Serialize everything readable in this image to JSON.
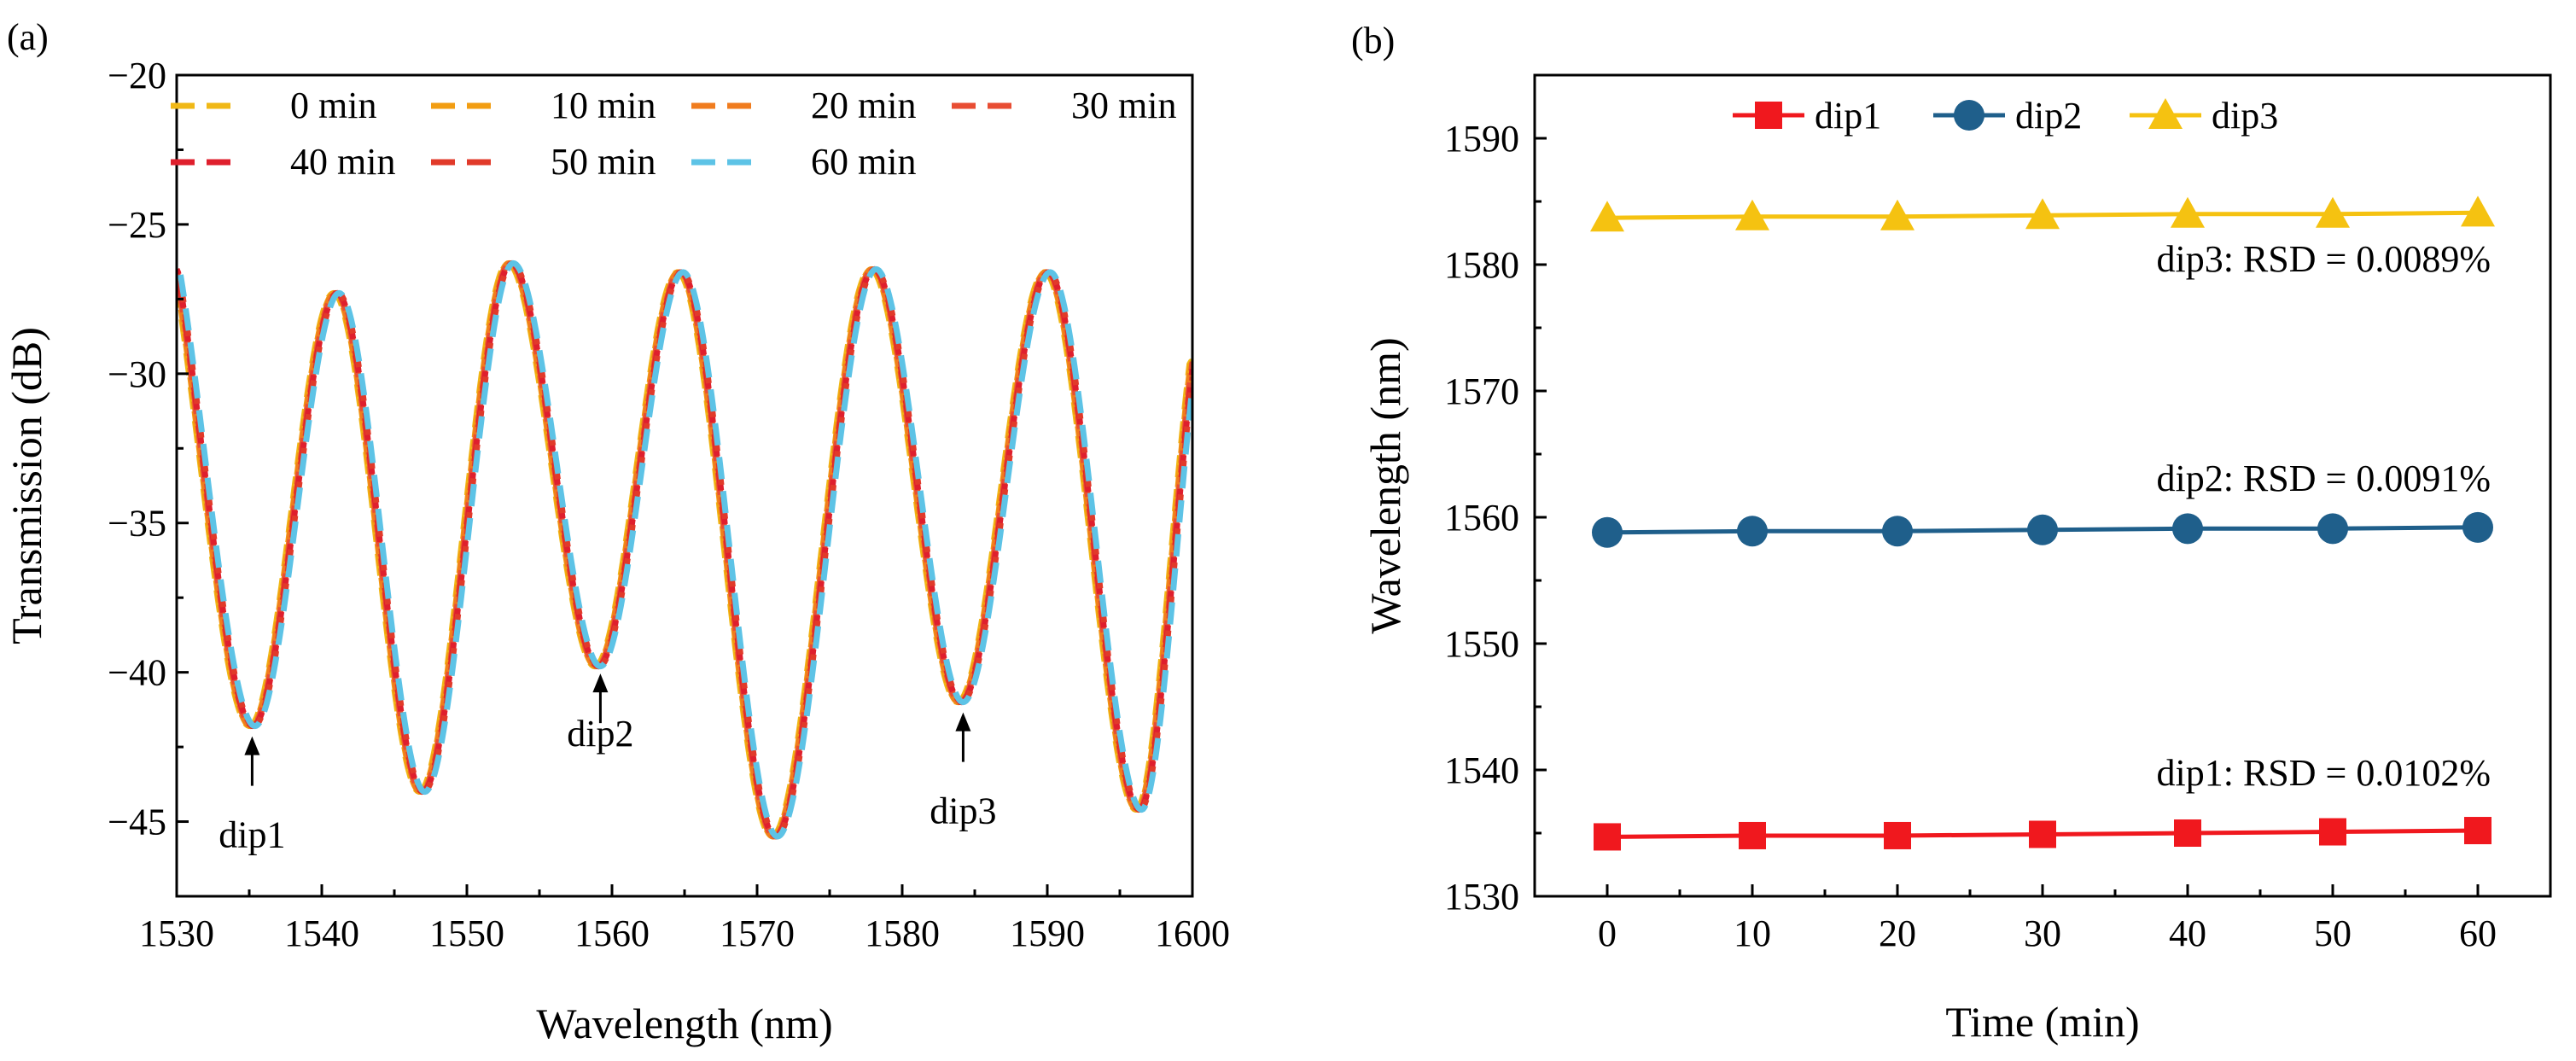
{
  "chart_data": [
    {
      "panel_label": "(a)",
      "type": "line",
      "xlabel": "Wavelength (nm)",
      "ylabel": "Transmission (dB)",
      "xlim": [
        1530,
        1600
      ],
      "ylim": [
        -47.5,
        -20
      ],
      "xticks": [
        "1530",
        "1540",
        "1550",
        "1560",
        "1570",
        "1580",
        "1590",
        "1600"
      ],
      "yticks": [
        "−20",
        "−25",
        "−30",
        "−35",
        "−40",
        "−45"
      ],
      "line_style": "dashed",
      "spectrum_key_points": {
        "x": [
          1530,
          1535.2,
          1541,
          1546.9,
          1553,
          1559,
          1564.7,
          1571.2,
          1578,
          1584,
          1590,
          1596.3,
          1600
        ],
        "y": [
          -26.5,
          -41.8,
          -27.3,
          -44.0,
          -26.3,
          -39.8,
          -26.6,
          -45.5,
          -26.5,
          -41.0,
          -26.6,
          -44.6,
          -29.6
        ]
      },
      "series": [
        {
          "name": "0 min",
          "color": "#F0B816",
          "shift_nm": -0.18
        },
        {
          "name": "10 min",
          "color": "#F29D12",
          "shift_nm": -0.12
        },
        {
          "name": "20 min",
          "color": "#F07C1E",
          "shift_nm": -0.06
        },
        {
          "name": "30 min",
          "color": "#E84D33",
          "shift_nm": 0.0
        },
        {
          "name": "40 min",
          "color": "#DF1F2D",
          "shift_nm": 0.06
        },
        {
          "name": "50 min",
          "color": "#E13A2A",
          "shift_nm": 0.12
        },
        {
          "name": "60 min",
          "color": "#5DC3E6",
          "shift_nm": 0.2
        }
      ],
      "legend": "top",
      "annotations": [
        {
          "text": "dip1",
          "x": 1535.2,
          "y": -41.8
        },
        {
          "text": "dip2",
          "x": 1559.2,
          "y": -39.7
        },
        {
          "text": "dip3",
          "x": 1584.2,
          "y": -41.0
        }
      ]
    },
    {
      "panel_label": "(b)",
      "type": "line",
      "xlabel": "Time (min)",
      "ylabel": "Wavelength (nm)",
      "xlim": [
        -5,
        65
      ],
      "ylim": [
        1530,
        1595
      ],
      "xticks": [
        "0",
        "10",
        "20",
        "30",
        "40",
        "50",
        "60"
      ],
      "yticks": [
        "1530",
        "1540",
        "1550",
        "1560",
        "1570",
        "1580",
        "1590"
      ],
      "x": [
        0,
        10,
        20,
        30,
        40,
        50,
        60
      ],
      "series": [
        {
          "name": "dip1",
          "color": "#F0181E",
          "marker": "square",
          "values": [
            1534.7,
            1534.8,
            1534.8,
            1534.9,
            1535.0,
            1535.1,
            1535.2
          ]
        },
        {
          "name": "dip2",
          "color": "#1F5F8B",
          "marker": "circle",
          "values": [
            1558.8,
            1558.9,
            1558.9,
            1559.0,
            1559.1,
            1559.1,
            1559.2
          ]
        },
        {
          "name": "dip3",
          "color": "#F5C211",
          "marker": "triangle",
          "values": [
            1583.7,
            1583.8,
            1583.8,
            1583.9,
            1584.0,
            1584.0,
            1584.1
          ]
        }
      ],
      "legend": "top",
      "annotations": [
        {
          "text": "dip3: RSD = 0.0089%"
        },
        {
          "text": "dip2: RSD = 0.0091%"
        },
        {
          "text": "dip1: RSD = 0.0102%"
        }
      ]
    }
  ]
}
